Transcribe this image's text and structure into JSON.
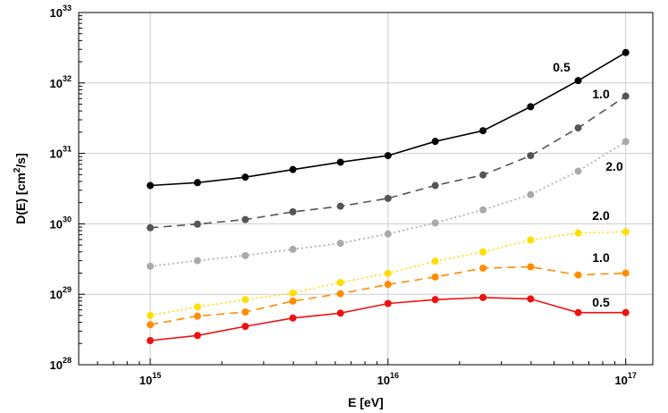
{
  "chart_data": {
    "type": "line",
    "x_scale": "log",
    "y_scale": "log",
    "x": [
      1000000000000000.0,
      1580000000000000.0,
      2510000000000000.0,
      3980000000000000.0,
      6310000000000000.0,
      1e+16,
      1.58e+16,
      2.51e+16,
      3.98e+16,
      6.31e+16,
      1e+17
    ],
    "xlim": [
      500000000000000.0,
      1.3e+17
    ],
    "ylim": [
      1e+28,
      1e+33
    ],
    "xlabel": "E [eV]",
    "ylabel": "D(E) [cm²/s]",
    "x_ticks": [
      {
        "value": 1000000000000000.0,
        "base": "10",
        "exp": "15"
      },
      {
        "value": 1e+16,
        "base": "10",
        "exp": "16"
      },
      {
        "value": 1e+17,
        "base": "10",
        "exp": "17"
      }
    ],
    "y_ticks": [
      {
        "value": 1e+28,
        "base": "10",
        "exp": "28"
      },
      {
        "value": 1e+29,
        "base": "10",
        "exp": "29"
      },
      {
        "value": 1e+30,
        "base": "10",
        "exp": "30"
      },
      {
        "value": 1e+31,
        "base": "10",
        "exp": "31"
      },
      {
        "value": 1e+32,
        "base": "10",
        "exp": "32"
      },
      {
        "value": 1e+33,
        "base": "10",
        "exp": "33"
      }
    ],
    "series": [
      {
        "label": "0.5",
        "color": "#000000",
        "dash": "solid",
        "values": [
          3.5e+30,
          3.85e+30,
          4.6e+30,
          5.9e+30,
          7.5e+30,
          9.3e+30,
          1.48e+31,
          2.1e+31,
          4.6e+31,
          1.08e+32,
          2.7e+32
        ]
      },
      {
        "label": "1.0",
        "color": "#555555",
        "dash": "dashed",
        "values": [
          8.8e+29,
          9.9e+29,
          1.15e+30,
          1.48e+30,
          1.78e+30,
          2.3e+30,
          3.5e+30,
          4.95e+30,
          9.3e+30,
          2.3e+31,
          6.5e+31
        ]
      },
      {
        "label": "2.0",
        "color": "#aaaaaa",
        "dash": "dotted",
        "values": [
          2.5e+29,
          3e+29,
          3.55e+29,
          4.35e+29,
          5.3e+29,
          7.2e+29,
          1.03e+30,
          1.58e+30,
          2.6e+30,
          5.6e+30,
          1.47e+31
        ]
      },
      {
        "label": "2.0",
        "color": "#ffdd00",
        "dash": "dotted",
        "values": [
          5e+28,
          6.6e+28,
          8.4e+28,
          1.04e+29,
          1.47e+29,
          1.98e+29,
          2.95e+29,
          3.98e+29,
          5.9e+29,
          7.4e+29,
          7.7e+29
        ]
      },
      {
        "label": "1.0",
        "color": "#ff8c00",
        "dash": "dashed",
        "values": [
          3.7e+28,
          4.9e+28,
          5.6e+28,
          8e+28,
          1.02e+29,
          1.38e+29,
          1.76e+29,
          2.35e+29,
          2.45e+29,
          1.88e+29,
          2e+29
        ]
      },
      {
        "label": "0.5",
        "color": "#ee1111",
        "dash": "solid",
        "values": [
          2.2e+28,
          2.6e+28,
          3.5e+28,
          4.6e+28,
          5.4e+28,
          7.4e+28,
          8.4e+28,
          9e+28,
          8.6e+28,
          5.5e+28,
          5.5e+28
        ]
      }
    ]
  }
}
